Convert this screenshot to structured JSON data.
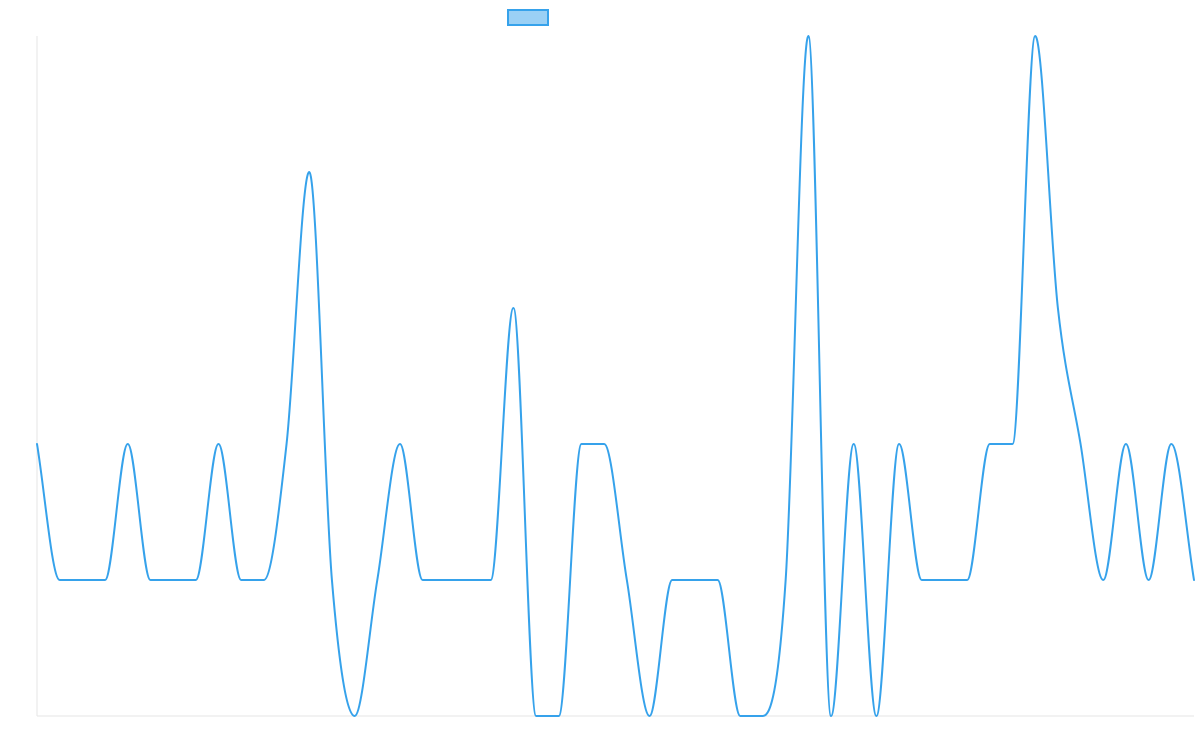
{
  "chart_data": {
    "type": "line",
    "title": "",
    "xlabel": "",
    "ylabel": "",
    "x": [
      0,
      1,
      2,
      3,
      4,
      5,
      6,
      7,
      8,
      9,
      10,
      11,
      12,
      13,
      14,
      15,
      16,
      17,
      18,
      19,
      20,
      21,
      22,
      23,
      24,
      25,
      26,
      27,
      28,
      29,
      30,
      31,
      32,
      33,
      34,
      35,
      36,
      37,
      38,
      39,
      40,
      41,
      42,
      43,
      44,
      45,
      46,
      47,
      48,
      49,
      50,
      51
    ],
    "ylim": [
      0,
      5
    ],
    "series": [
      {
        "name": "",
        "color": "#36a2eb",
        "fill": "#9ad0f5",
        "values": [
          2,
          1,
          1,
          1,
          2,
          1,
          1,
          1,
          2,
          1,
          1,
          2,
          4,
          1,
          0,
          1,
          2,
          1,
          1,
          1,
          1,
          3,
          0,
          0,
          2,
          2,
          1,
          0,
          1,
          1,
          1,
          0,
          0,
          1,
          5,
          0,
          2,
          0,
          2,
          1,
          1,
          1,
          2,
          2,
          5,
          3,
          2,
          1,
          2,
          1,
          2,
          1
        ]
      }
    ],
    "grid": false,
    "legend": "top-center"
  }
}
